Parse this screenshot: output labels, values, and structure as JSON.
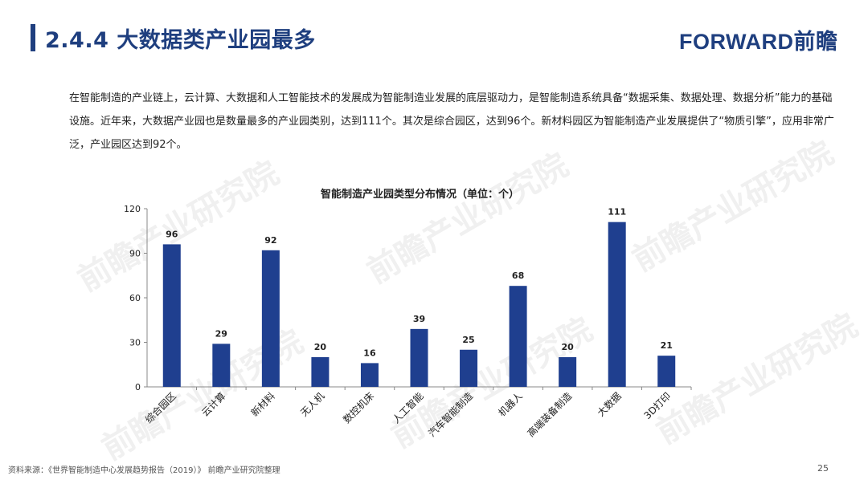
{
  "header": {
    "title": "2.4.4 大数据类产业园最多",
    "brand": "FORWARD前瞻"
  },
  "intro": "在智能制造的产业链上，云计算、大数据和人工智能技术的发展成为智能制造业发展的底层驱动力，是智能制造系统具备“数据采集、数据处理、数据分析”能力的基础设施。近年来，大数据产业园也是数量最多的产业园类别，达到111个。其次是综合园区，达到96个。新材料园区为智能制造产业发展提供了“物质引擎”，应用非常广泛，产业园区达到92个。",
  "watermark": "前瞻产业研究院",
  "chart_data": {
    "type": "bar",
    "title": "智能制造产业园类型分布情况（单位：个）",
    "categories": [
      "综合园区",
      "云计算",
      "新材料",
      "无人机",
      "数控机床",
      "人工智能",
      "汽车智能制造",
      "机器人",
      "高端装备制造",
      "大数据",
      "3D打印"
    ],
    "values": [
      96,
      29,
      92,
      20,
      16,
      39,
      25,
      68,
      20,
      111,
      21
    ],
    "ylim": [
      0,
      120
    ],
    "yticks": [
      0,
      30,
      60,
      90,
      120
    ],
    "bar_color": "#1f3f8f",
    "grid": false,
    "legend": "none"
  },
  "footer": {
    "source": "资料来源：《世界智能制造中心发展趋势报告（2019）》 前瞻产业研究院整理",
    "page": "25"
  }
}
